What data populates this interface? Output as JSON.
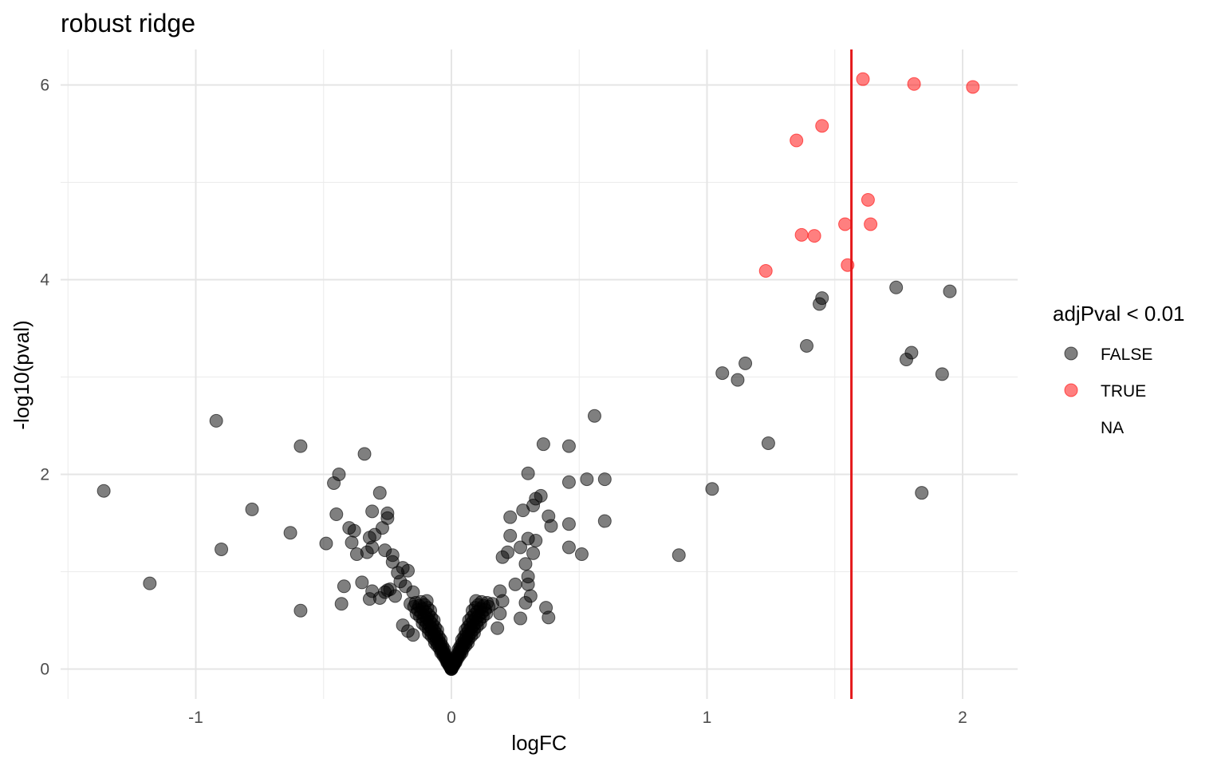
{
  "chart_data": {
    "type": "scatter",
    "title": "robust ridge",
    "xlabel": "logFC",
    "ylabel": "-log10(pval)",
    "xlim": [
      -1.5,
      2.2
    ],
    "ylim": [
      -0.1,
      6.3
    ],
    "x_ticks": [
      -1,
      0,
      1,
      2
    ],
    "x_tick_labels": [
      "-1",
      "0",
      "1",
      "2"
    ],
    "y_ticks": [
      0,
      2,
      4,
      6
    ],
    "y_tick_labels": [
      "0",
      "2",
      "4",
      "6"
    ],
    "grid": true,
    "legend": {
      "title": "adjPval < 0.01",
      "placement": "right",
      "entries": [
        {
          "label": "FALSE",
          "color": "#000000"
        },
        {
          "label": "TRUE",
          "color": "#ff0000"
        },
        {
          "label": "NA",
          "color": "none"
        }
      ]
    },
    "vline": {
      "x": 1.565,
      "color": "#e41a1c"
    },
    "series": [
      {
        "name": "TRUE",
        "color": "#ff0000",
        "points": [
          [
            1.61,
            6.06
          ],
          [
            1.81,
            6.01
          ],
          [
            2.04,
            5.98
          ],
          [
            1.45,
            5.58
          ],
          [
            1.35,
            5.43
          ],
          [
            1.63,
            4.82
          ],
          [
            1.54,
            4.57
          ],
          [
            1.64,
            4.57
          ],
          [
            1.37,
            4.46
          ],
          [
            1.42,
            4.45
          ],
          [
            1.55,
            4.15
          ],
          [
            1.23,
            4.09
          ]
        ]
      },
      {
        "name": "FALSE",
        "color": "#000000",
        "points": [
          [
            1.74,
            3.92
          ],
          [
            1.95,
            3.88
          ],
          [
            1.45,
            3.81
          ],
          [
            1.44,
            3.75
          ],
          [
            1.39,
            3.32
          ],
          [
            1.8,
            3.25
          ],
          [
            1.78,
            3.18
          ],
          [
            1.15,
            3.14
          ],
          [
            1.06,
            3.04
          ],
          [
            1.92,
            3.03
          ],
          [
            1.12,
            2.97
          ],
          [
            1.24,
            2.32
          ],
          [
            1.02,
            1.85
          ],
          [
            1.84,
            1.81
          ],
          [
            0.89,
            1.17
          ],
          [
            -0.92,
            2.55
          ],
          [
            -0.59,
            2.29
          ],
          [
            -0.34,
            2.21
          ],
          [
            -1.36,
            1.83
          ],
          [
            -1.18,
            0.88
          ],
          [
            -0.9,
            1.23
          ],
          [
            -0.78,
            1.64
          ],
          [
            -0.63,
            1.4
          ],
          [
            -0.59,
            0.6
          ],
          [
            -0.49,
            1.29
          ],
          [
            -0.44,
            2.0
          ],
          [
            -0.46,
            1.91
          ],
          [
            -0.45,
            1.59
          ],
          [
            -0.43,
            0.67
          ],
          [
            -0.42,
            0.85
          ],
          [
            -0.4,
            1.45
          ],
          [
            -0.38,
            1.42
          ],
          [
            -0.39,
            1.3
          ],
          [
            -0.37,
            1.18
          ],
          [
            -0.35,
            0.89
          ],
          [
            -0.33,
            1.2
          ],
          [
            -0.32,
            1.35
          ],
          [
            -0.31,
            1.62
          ],
          [
            -0.31,
            1.25
          ],
          [
            -0.3,
            1.38
          ],
          [
            -0.32,
            0.72
          ],
          [
            -0.31,
            0.8
          ],
          [
            -0.28,
            1.81
          ],
          [
            -0.27,
            1.45
          ],
          [
            -0.26,
            1.22
          ],
          [
            -0.25,
            1.6
          ],
          [
            -0.25,
            1.55
          ],
          [
            -0.28,
            0.73
          ],
          [
            -0.26,
            0.79
          ],
          [
            -0.25,
            0.81
          ],
          [
            -0.23,
            1.17
          ],
          [
            -0.23,
            1.1
          ],
          [
            -0.24,
            0.82
          ],
          [
            -0.22,
            0.75
          ],
          [
            -0.21,
            0.99
          ],
          [
            -0.19,
            1.04
          ],
          [
            -0.2,
            0.9
          ],
          [
            -0.17,
            1.01
          ],
          [
            -0.18,
            0.85
          ],
          [
            -0.19,
            0.45
          ],
          [
            -0.17,
            0.39
          ],
          [
            -0.15,
            0.79
          ],
          [
            -0.15,
            0.35
          ],
          [
            0.56,
            2.6
          ],
          [
            0.36,
            2.31
          ],
          [
            0.46,
            2.29
          ],
          [
            0.3,
            2.01
          ],
          [
            0.53,
            1.95
          ],
          [
            0.6,
            1.95
          ],
          [
            0.46,
            1.92
          ],
          [
            0.35,
            1.78
          ],
          [
            0.33,
            1.75
          ],
          [
            0.32,
            1.68
          ],
          [
            0.28,
            1.63
          ],
          [
            0.23,
            1.56
          ],
          [
            0.38,
            1.57
          ],
          [
            0.46,
            1.49
          ],
          [
            0.39,
            1.47
          ],
          [
            0.6,
            1.52
          ],
          [
            0.23,
            1.37
          ],
          [
            0.3,
            1.34
          ],
          [
            0.33,
            1.32
          ],
          [
            0.46,
            1.25
          ],
          [
            0.27,
            1.25
          ],
          [
            0.51,
            1.18
          ],
          [
            0.32,
            1.19
          ],
          [
            0.22,
            1.2
          ],
          [
            0.2,
            1.15
          ],
          [
            0.29,
            1.08
          ],
          [
            0.3,
            0.95
          ],
          [
            0.25,
            0.87
          ],
          [
            0.3,
            0.87
          ],
          [
            0.31,
            0.75
          ],
          [
            0.19,
            0.8
          ],
          [
            0.2,
            0.7
          ],
          [
            0.29,
            0.68
          ],
          [
            0.37,
            0.63
          ],
          [
            0.19,
            0.57
          ],
          [
            0.38,
            0.53
          ],
          [
            0.27,
            0.52
          ],
          [
            0.18,
            0.42
          ]
        ]
      }
    ]
  }
}
